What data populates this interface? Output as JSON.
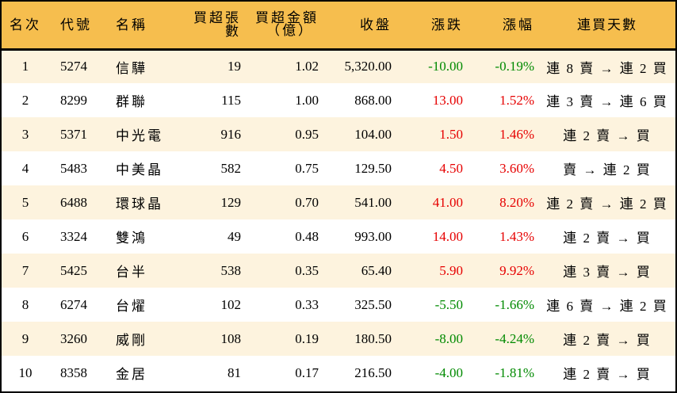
{
  "table": {
    "headers": {
      "rank": "名次",
      "code": "代號",
      "name": "名稱",
      "net_buy_lots": "買超張數",
      "net_buy_amount_line1": "買超金額",
      "net_buy_amount_line2": "（億）",
      "close": "收盤",
      "change": "漲跌",
      "change_pct": "漲幅",
      "streak": "連買天數"
    },
    "colors": {
      "header_bg": "#f6be4e",
      "odd_row_bg": "#fdf3de",
      "even_row_bg": "#ffffff",
      "up": "#e60000",
      "down": "#008a00"
    },
    "rows": [
      {
        "rank": "1",
        "code": "5274",
        "name": "信驊",
        "lots": "19",
        "amount": "1.02",
        "close": "5,320.00",
        "change": "-10.00",
        "pct": "-0.19%",
        "dir": "down",
        "streak": "連 8 賣 → 連 2 買"
      },
      {
        "rank": "2",
        "code": "8299",
        "name": "群聯",
        "lots": "115",
        "amount": "1.00",
        "close": "868.00",
        "change": "13.00",
        "pct": "1.52%",
        "dir": "up",
        "streak": "連 3 賣 → 連 6 買"
      },
      {
        "rank": "3",
        "code": "5371",
        "name": "中光電",
        "lots": "916",
        "amount": "0.95",
        "close": "104.00",
        "change": "1.50",
        "pct": "1.46%",
        "dir": "up",
        "streak": "連 2 賣 → 買"
      },
      {
        "rank": "4",
        "code": "5483",
        "name": "中美晶",
        "lots": "582",
        "amount": "0.75",
        "close": "129.50",
        "change": "4.50",
        "pct": "3.60%",
        "dir": "up",
        "streak": "賣 → 連 2 買"
      },
      {
        "rank": "5",
        "code": "6488",
        "name": "環球晶",
        "lots": "129",
        "amount": "0.70",
        "close": "541.00",
        "change": "41.00",
        "pct": "8.20%",
        "dir": "up",
        "streak": "連 2 賣 → 連 2 買"
      },
      {
        "rank": "6",
        "code": "3324",
        "name": "雙鴻",
        "lots": "49",
        "amount": "0.48",
        "close": "993.00",
        "change": "14.00",
        "pct": "1.43%",
        "dir": "up",
        "streak": "連 2 賣 → 買"
      },
      {
        "rank": "7",
        "code": "5425",
        "name": "台半",
        "lots": "538",
        "amount": "0.35",
        "close": "65.40",
        "change": "5.90",
        "pct": "9.92%",
        "dir": "up",
        "streak": "連 3 賣 → 買"
      },
      {
        "rank": "8",
        "code": "6274",
        "name": "台燿",
        "lots": "102",
        "amount": "0.33",
        "close": "325.50",
        "change": "-5.50",
        "pct": "-1.66%",
        "dir": "down",
        "streak": "連 6 賣 → 連 2 買"
      },
      {
        "rank": "9",
        "code": "3260",
        "name": "威剛",
        "lots": "108",
        "amount": "0.19",
        "close": "180.50",
        "change": "-8.00",
        "pct": "-4.24%",
        "dir": "down",
        "streak": "連 2 賣 → 買"
      },
      {
        "rank": "10",
        "code": "8358",
        "name": "金居",
        "lots": "81",
        "amount": "0.17",
        "close": "216.50",
        "change": "-4.00",
        "pct": "-1.81%",
        "dir": "down",
        "streak": "連 2 賣 → 買"
      }
    ]
  }
}
